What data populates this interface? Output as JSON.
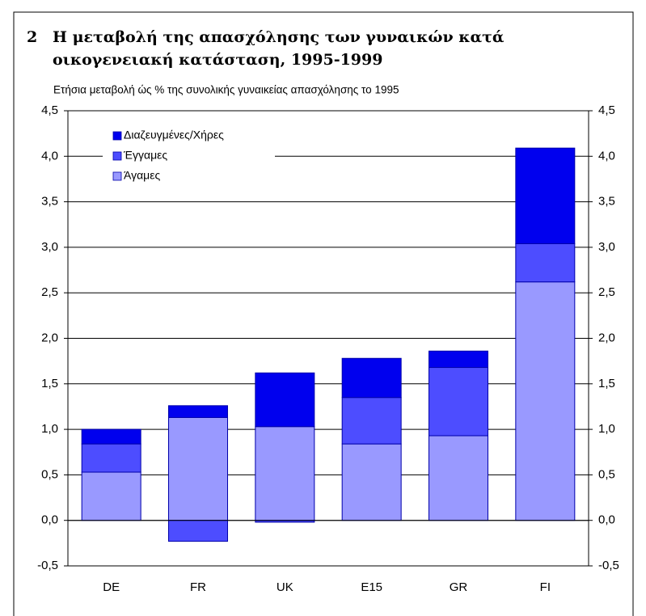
{
  "chart_data": {
    "type": "stacked_bar",
    "title_number": "2",
    "title": [
      "Η μεταβολή της απασχόλησης των γυναικών κατά",
      "οικογενειακή κατάσταση, 1995-1999"
    ],
    "subtitle": "Ετήσια μεταβολή ώς % της συνολικής γυναικείας απασχόλησης το 1995",
    "categories": [
      "DE",
      "FR",
      "UK",
      "E15",
      "GR",
      "FI"
    ],
    "series": [
      {
        "name": "Άγαμες",
        "color": "#9999ff",
        "values": [
          0.53,
          1.13,
          1.03,
          0.84,
          0.93,
          2.62
        ]
      },
      {
        "name": "Έγγαμες",
        "color": "#4d4dff",
        "values": [
          0.31,
          -0.23,
          -0.02,
          0.51,
          0.75,
          0.42
        ]
      },
      {
        "name": "Διαζευγμένες/Χήρες",
        "color": "#0000ee",
        "values": [
          0.16,
          0.13,
          0.59,
          0.43,
          0.18,
          1.05
        ]
      }
    ],
    "ylim": [
      -0.5,
      4.5
    ],
    "yticks": [
      {
        "value": -0.5,
        "label": "-0,5"
      },
      {
        "value": 0,
        "label": "0,0"
      },
      {
        "value": 0.5,
        "label": "0,5"
      },
      {
        "value": 1,
        "label": "1,0"
      },
      {
        "value": 1.5,
        "label": "1,5"
      },
      {
        "value": 2,
        "label": "2,0"
      },
      {
        "value": 2.5,
        "label": "2,5"
      },
      {
        "value": 3,
        "label": "3,0"
      },
      {
        "value": 3.5,
        "label": "3,5"
      },
      {
        "value": 4,
        "label": "4,0"
      },
      {
        "value": 4.5,
        "label": "4,5"
      }
    ],
    "y2lim": [
      -0.5,
      4.5
    ],
    "y2ticks": [
      {
        "value": -0.5,
        "label": "-0,5"
      },
      {
        "value": 0,
        "label": "0,0"
      },
      {
        "value": 0.5,
        "label": "0,5"
      },
      {
        "value": 1,
        "label": "1,0"
      },
      {
        "value": 1.5,
        "label": "1,5"
      },
      {
        "value": 2,
        "label": "2,0"
      },
      {
        "value": 2.5,
        "label": "2,5"
      },
      {
        "value": 3,
        "label": "3,0"
      },
      {
        "value": 3.5,
        "label": "3,5"
      },
      {
        "value": 4,
        "label": "4,0"
      },
      {
        "value": 4.5,
        "label": "4,5"
      }
    ],
    "grid": true,
    "legend": "upper-left"
  }
}
